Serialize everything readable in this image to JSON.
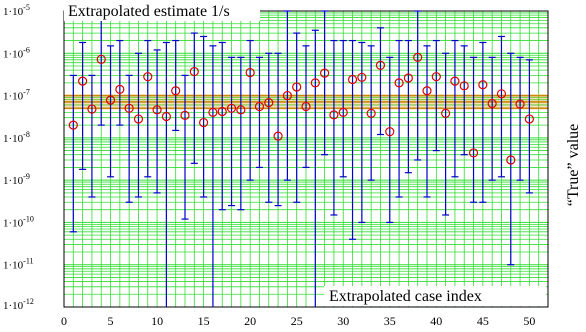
{
  "chart_data": {
    "type": "scatter",
    "title": "Extrapolated estimate 1/s",
    "xlabel": "Extrapolated case index",
    "right_label": "“True” value",
    "xlim": [
      0,
      52
    ],
    "ylim_exp": [
      -12,
      -5
    ],
    "y_scale": "log",
    "x_ticks": [
      0,
      5,
      10,
      15,
      20,
      25,
      30,
      35,
      40,
      45,
      50
    ],
    "y_tick_labels": [
      {
        "exp": -5,
        "base": "1·10",
        "sup": "-5"
      },
      {
        "exp": -6,
        "base": "1·10",
        "sup": "-6"
      },
      {
        "exp": -7,
        "base": "1·10",
        "sup": "-7"
      },
      {
        "exp": -8,
        "base": "1·10",
        "sup": "-8"
      },
      {
        "exp": -9,
        "base": "1·10",
        "sup": "-9"
      },
      {
        "exp": -10,
        "base": "1·10",
        "sup": "-10"
      },
      {
        "exp": -11,
        "base": "1·10",
        "sup": "-11"
      },
      {
        "exp": -12,
        "base": "1·10",
        "sup": "-12"
      }
    ],
    "grid": true,
    "true_value_band": [
      5e-08,
      1e-07
    ],
    "points": [
      {
        "x": 1,
        "y": 2e-08,
        "lo": 6e-11,
        "hi": 3e-07
      },
      {
        "x": 2,
        "y": 2.2e-07,
        "lo": 1.8e-09,
        "hi": 1.8e-06
      },
      {
        "x": 3,
        "y": 4.8e-08,
        "lo": 4e-10,
        "hi": 3e-07
      },
      {
        "x": 4,
        "y": 7.2e-07,
        "lo": 2e-08,
        "hi": 1.8e-05
      },
      {
        "x": 5,
        "y": 7.8e-08,
        "lo": 1.2e-09,
        "hi": 1.5e-06
      },
      {
        "x": 6,
        "y": 1.4e-07,
        "lo": 2e-08,
        "hi": 2e-06
      },
      {
        "x": 7,
        "y": 5e-08,
        "lo": 3e-10,
        "hi": 3e-07
      },
      {
        "x": 8,
        "y": 2.8e-08,
        "lo": 4e-10,
        "hi": 1e-06
      },
      {
        "x": 9,
        "y": 2.8e-07,
        "lo": 1.2e-09,
        "hi": 2e-06
      },
      {
        "x": 10,
        "y": 4.6e-08,
        "lo": 5e-10,
        "hi": 1.2e-06
      },
      {
        "x": 11,
        "y": 3.2e-08,
        "lo": 1e-12,
        "hi": 1.8e-06
      },
      {
        "x": 12,
        "y": 1.3e-07,
        "lo": 1.5e-08,
        "hi": 2e-06
      },
      {
        "x": 13,
        "y": 3.4e-08,
        "lo": 1.2e-10,
        "hi": 3e-07
      },
      {
        "x": 14,
        "y": 3.7e-07,
        "lo": 2.5e-09,
        "hi": 3e-06
      },
      {
        "x": 15,
        "y": 2.3e-08,
        "lo": 4e-10,
        "hi": 2.5e-06
      },
      {
        "x": 16,
        "y": 4e-08,
        "lo": 1e-12,
        "hi": 1.5e-06
      },
      {
        "x": 17,
        "y": 4.2e-08,
        "lo": 2e-10,
        "hi": 1.8e-06
      },
      {
        "x": 18,
        "y": 5e-08,
        "lo": 2.5e-10,
        "hi": 8e-07
      },
      {
        "x": 19,
        "y": 4.6e-08,
        "lo": 2e-10,
        "hi": 8e-07
      },
      {
        "x": 20,
        "y": 3.5e-07,
        "lo": 1e-09,
        "hi": 2e-06
      },
      {
        "x": 21,
        "y": 5.5e-08,
        "lo": 2e-09,
        "hi": 8e-07
      },
      {
        "x": 22,
        "y": 6.8e-08,
        "lo": 3e-10,
        "hi": 1e-06
      },
      {
        "x": 23,
        "y": 1.1e-08,
        "lo": 2.5e-10,
        "hi": 1e-06
      },
      {
        "x": 24,
        "y": 1e-07,
        "lo": 1e-09,
        "hi": 1e-05
      },
      {
        "x": 25,
        "y": 1.6e-07,
        "lo": 3e-10,
        "hi": 3e-06
      },
      {
        "x": 26,
        "y": 5.5e-08,
        "lo": 2e-09,
        "hi": 1.5e-06
      },
      {
        "x": 27,
        "y": 2e-07,
        "lo": 1e-12,
        "hi": 3.5e-06
      },
      {
        "x": 28,
        "y": 3.4e-07,
        "lo": 4e-09,
        "hi": 2e-05
      },
      {
        "x": 29,
        "y": 3.5e-08,
        "lo": 1.5e-10,
        "hi": 2e-06
      },
      {
        "x": 30,
        "y": 4e-08,
        "lo": 1.2e-09,
        "hi": 2e-06
      },
      {
        "x": 31,
        "y": 2.4e-07,
        "lo": 4e-11,
        "hi": 2e-06
      },
      {
        "x": 32,
        "y": 2.7e-07,
        "lo": 1e-10,
        "hi": 1.8e-06
      },
      {
        "x": 33,
        "y": 3.8e-08,
        "lo": 1e-09,
        "hi": 1.5e-06
      },
      {
        "x": 34,
        "y": 5.2e-07,
        "lo": 1.2e-08,
        "hi": 4e-06
      },
      {
        "x": 35,
        "y": 1.4e-08,
        "lo": 1e-10,
        "hi": 8e-07
      },
      {
        "x": 36,
        "y": 2e-07,
        "lo": 4e-10,
        "hi": 2e-06
      },
      {
        "x": 37,
        "y": 2.6e-07,
        "lo": 1.5e-09,
        "hi": 2e-06
      },
      {
        "x": 38,
        "y": 8e-07,
        "lo": 3e-09,
        "hi": 2e-05
      },
      {
        "x": 39,
        "y": 1.3e-07,
        "lo": 4e-10,
        "hi": 1.5e-06
      },
      {
        "x": 40,
        "y": 2.8e-07,
        "lo": 5e-09,
        "hi": 2e-06
      },
      {
        "x": 41,
        "y": 3.8e-08,
        "lo": 1.5e-10,
        "hi": 1e-06
      },
      {
        "x": 42,
        "y": 2.2e-07,
        "lo": 1.2e-09,
        "hi": 2e-06
      },
      {
        "x": 43,
        "y": 1.7e-07,
        "lo": 4e-09,
        "hi": 1.5e-06
      },
      {
        "x": 44,
        "y": 4.4e-09,
        "lo": 3e-10,
        "hi": 8e-07
      },
      {
        "x": 45,
        "y": 1.8e-07,
        "lo": 3e-10,
        "hi": 1.8e-06
      },
      {
        "x": 46,
        "y": 6.5e-08,
        "lo": 1e-09,
        "hi": 8e-07
      },
      {
        "x": 47,
        "y": 1.1e-07,
        "lo": 1.2e-09,
        "hi": 2.5e-06
      },
      {
        "x": 48,
        "y": 3e-09,
        "lo": 1e-11,
        "hi": 1e-06
      },
      {
        "x": 49,
        "y": 6.3e-08,
        "lo": 1e-09,
        "hi": 8e-07
      },
      {
        "x": 50,
        "y": 2.8e-08,
        "lo": 5e-10,
        "hi": 7e-07
      }
    ],
    "colors": {
      "background_grid": "#33dd33",
      "error_bar": "#0000cc",
      "marker": "#dd0000",
      "true_value_band": "#cc8800",
      "axes": "#000000"
    }
  }
}
